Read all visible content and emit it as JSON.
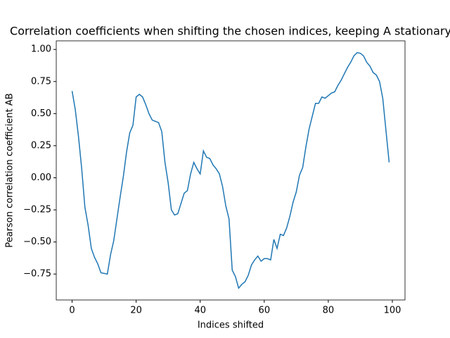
{
  "chart_data": {
    "type": "line",
    "title": "Correlation coefficients when shifting the chosen indices, keeping A stationary",
    "xlabel": "Indices shifted",
    "ylabel": "Pearson correlation coefficient AB",
    "x": [
      0,
      1,
      2,
      3,
      4,
      5,
      6,
      7,
      8,
      9,
      10,
      11,
      12,
      13,
      14,
      15,
      16,
      17,
      18,
      19,
      20,
      21,
      22,
      23,
      24,
      25,
      26,
      27,
      28,
      29,
      30,
      31,
      32,
      33,
      34,
      35,
      36,
      37,
      38,
      39,
      40,
      41,
      42,
      43,
      44,
      45,
      46,
      47,
      48,
      49,
      50,
      51,
      52,
      53,
      54,
      55,
      56,
      57,
      58,
      59,
      60,
      61,
      62,
      63,
      64,
      65,
      66,
      67,
      68,
      69,
      70,
      71,
      72,
      73,
      74,
      75,
      76,
      77,
      78,
      79,
      80,
      81,
      82,
      83,
      84,
      85,
      86,
      87,
      88,
      89,
      90,
      91,
      92,
      93,
      94,
      95,
      96,
      97,
      98,
      99
    ],
    "series": [
      {
        "name": "AB",
        "color": "#1f77b4",
        "values": [
          0.676,
          0.53,
          0.32,
          0.07,
          -0.23,
          -0.37,
          -0.55,
          -0.62,
          -0.67,
          -0.74,
          -0.745,
          -0.75,
          -0.6,
          -0.49,
          -0.32,
          -0.15,
          0.01,
          0.2,
          0.35,
          0.41,
          0.63,
          0.65,
          0.63,
          0.57,
          0.5,
          0.45,
          0.44,
          0.43,
          0.36,
          0.12,
          -0.04,
          -0.25,
          -0.29,
          -0.28,
          -0.2,
          -0.12,
          -0.1,
          0.03,
          0.12,
          0.07,
          0.03,
          0.21,
          0.16,
          0.15,
          0.1,
          0.07,
          0.03,
          -0.07,
          -0.22,
          -0.32,
          -0.72,
          -0.77,
          -0.86,
          -0.83,
          -0.81,
          -0.76,
          -0.68,
          -0.64,
          -0.61,
          -0.65,
          -0.63,
          -0.63,
          -0.64,
          -0.48,
          -0.55,
          -0.44,
          -0.45,
          -0.39,
          -0.3,
          -0.19,
          -0.11,
          0.02,
          0.08,
          0.24,
          0.38,
          0.48,
          0.58,
          0.58,
          0.63,
          0.62,
          0.64,
          0.66,
          0.67,
          0.72,
          0.76,
          0.81,
          0.86,
          0.9,
          0.95,
          0.975,
          0.97,
          0.95,
          0.9,
          0.87,
          0.82,
          0.8,
          0.75,
          0.62,
          0.37,
          0.12
        ]
      }
    ],
    "xlim": [
      -4.95,
      103.95
    ],
    "xticks": [
      0,
      20,
      40,
      60,
      80,
      100
    ],
    "ylim": [
      -0.952,
      1.067
    ],
    "yticks": [
      {
        "value": -0.75,
        "label": "−0.75"
      },
      {
        "value": -0.5,
        "label": "−0.50"
      },
      {
        "value": -0.25,
        "label": "−0.25"
      },
      {
        "value": 0,
        "label": "0.00"
      },
      0.25,
      {
        "value": 0.5,
        "label": "0.50"
      },
      0.75,
      {
        "value": 1,
        "label": "1.00"
      }
    ]
  }
}
